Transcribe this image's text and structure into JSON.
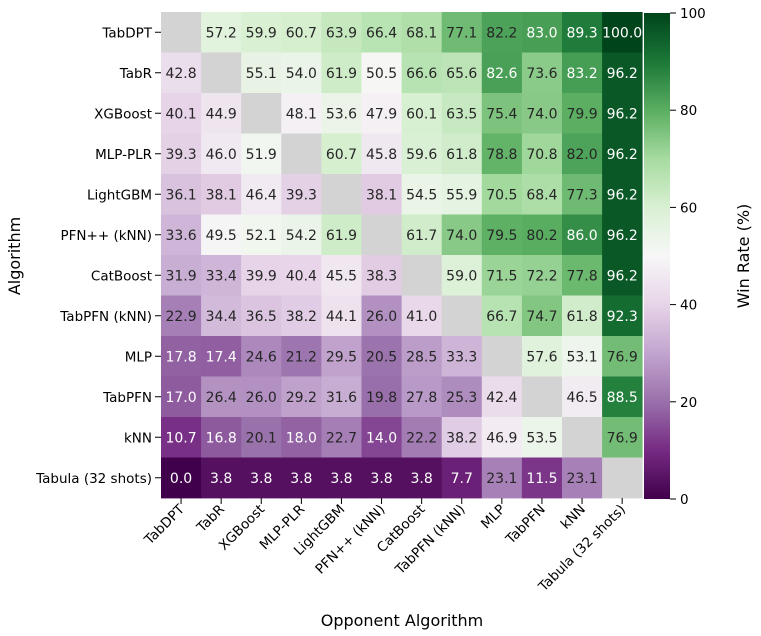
{
  "chart_data": {
    "type": "heatmap",
    "row_labels": [
      "TabDPT",
      "TabR",
      "XGBoost",
      "MLP-PLR",
      "LightGBM",
      "PFN++ (kNN)",
      "CatBoost",
      "TabPFN (kNN)",
      "MLP",
      "TabPFN",
      "kNN",
      "Tabula (32 shots)"
    ],
    "col_labels": [
      "TabDPT",
      "TabR",
      "XGBoost",
      "MLP-PLR",
      "LightGBM",
      "PFN++ (kNN)",
      "CatBoost",
      "TabPFN (kNN)",
      "MLP",
      "TabPFN",
      "kNN",
      "Tabula (32 shots)"
    ],
    "values": [
      [
        null,
        57.2,
        59.9,
        60.7,
        63.9,
        66.4,
        68.1,
        77.1,
        82.2,
        83.0,
        89.3,
        100.0
      ],
      [
        42.8,
        null,
        55.1,
        54.0,
        61.9,
        50.5,
        66.6,
        65.6,
        82.6,
        73.6,
        83.2,
        96.2
      ],
      [
        40.1,
        44.9,
        null,
        48.1,
        53.6,
        47.9,
        60.1,
        63.5,
        75.4,
        74.0,
        79.9,
        96.2
      ],
      [
        39.3,
        46.0,
        51.9,
        null,
        60.7,
        45.8,
        59.6,
        61.8,
        78.8,
        70.8,
        82.0,
        96.2
      ],
      [
        36.1,
        38.1,
        46.4,
        39.3,
        null,
        38.1,
        54.5,
        55.9,
        70.5,
        68.4,
        77.3,
        96.2
      ],
      [
        33.6,
        49.5,
        52.1,
        54.2,
        61.9,
        null,
        61.7,
        74.0,
        79.5,
        80.2,
        86.0,
        96.2
      ],
      [
        31.9,
        33.4,
        39.9,
        40.4,
        45.5,
        38.3,
        null,
        59.0,
        71.5,
        72.2,
        77.8,
        96.2
      ],
      [
        22.9,
        34.4,
        36.5,
        38.2,
        44.1,
        26.0,
        41.0,
        null,
        66.7,
        74.7,
        61.8,
        92.3
      ],
      [
        17.8,
        17.4,
        24.6,
        21.2,
        29.5,
        20.5,
        28.5,
        33.3,
        null,
        57.6,
        53.1,
        76.9
      ],
      [
        17.0,
        26.4,
        26.0,
        29.2,
        31.6,
        19.8,
        27.8,
        25.3,
        42.4,
        null,
        46.5,
        88.5
      ],
      [
        10.7,
        16.8,
        20.1,
        18.0,
        22.7,
        14.0,
        22.2,
        38.2,
        46.9,
        53.5,
        null,
        76.9
      ],
      [
        0.0,
        3.8,
        3.8,
        3.8,
        3.8,
        3.8,
        3.8,
        7.7,
        23.1,
        11.5,
        23.1,
        null
      ]
    ],
    "xlabel": "Opponent Algorithm",
    "ylabel": "Algorithm",
    "colorbar": {
      "label": "Win Rate (%)",
      "range": [
        0,
        100
      ],
      "ticks": [
        0,
        20,
        40,
        60,
        80,
        100
      ],
      "colormap": "PRGn",
      "stops": [
        "#40004b",
        "#762a83",
        "#9970ab",
        "#c2a5cf",
        "#e7d4e8",
        "#f7f7f7",
        "#d9f0d3",
        "#a6dba0",
        "#5aae61",
        "#1b7837",
        "#00441b"
      ]
    },
    "diagonal_color": "#d3d3d3",
    "decimals": 1
  }
}
